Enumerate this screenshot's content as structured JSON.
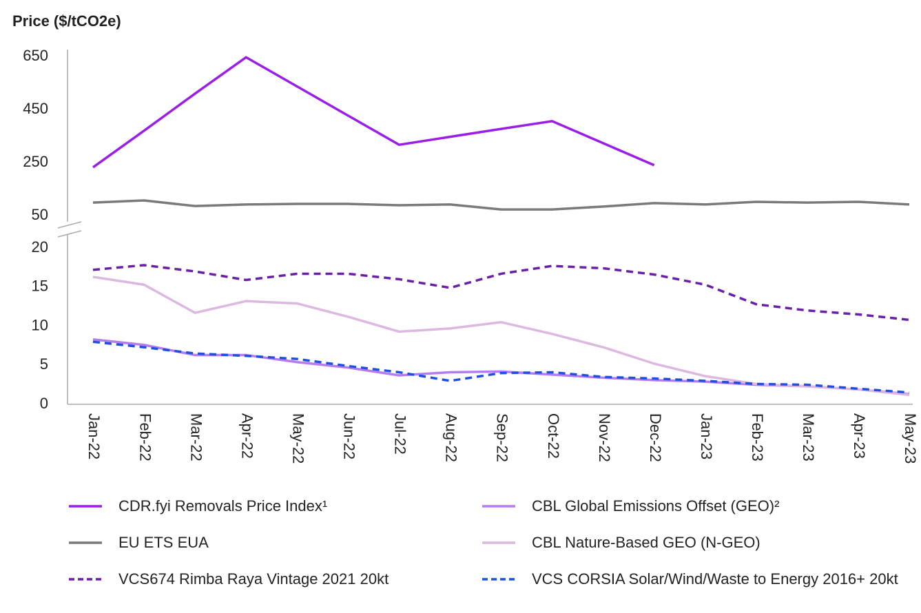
{
  "chart_data": {
    "type": "line",
    "title": "Price ($/tCO2e)",
    "categories": [
      "Jan-22",
      "Feb-22",
      "Mar-22",
      "Apr-22",
      "May-22",
      "Jun-22",
      "Jul-22",
      "Aug-22",
      "Sep-22",
      "Oct-22",
      "Nov-22",
      "Dec-22",
      "Jan-23",
      "Feb-23",
      "Mar-23",
      "Apr-23",
      "May-23"
    ],
    "ylim": [
      0,
      20
    ],
    "yticks": [
      0,
      5,
      10,
      15,
      20
    ],
    "y2lim": [
      50,
      650
    ],
    "y2ticks": [
      50,
      250,
      450,
      650
    ],
    "series": [
      {
        "name": "CDR.fyi Removals Price Index¹",
        "color": "#9b1de8",
        "axis": "y2",
        "dashed": false,
        "values": [
          232,
          370,
          510,
          647,
          537,
          427,
          317,
          347,
          377,
          406,
          323,
          240,
          null,
          null,
          null,
          null,
          null
        ]
      },
      {
        "name": "EU ETS EUA",
        "color": "#7a7a7a",
        "axis": "y2",
        "dashed": false,
        "values": [
          99,
          107,
          86,
          92,
          94,
          94,
          89,
          92,
          73,
          73,
          84,
          97,
          92,
          102,
          99,
          102,
          92
        ]
      },
      {
        "name": "VCS674 Rimba Raya Vintage 2021 20kt",
        "color": "#6a1fa8",
        "axis": "y",
        "dashed": true,
        "values": [
          17.2,
          17.8,
          17.0,
          15.9,
          16.7,
          16.7,
          16.0,
          14.9,
          16.7,
          17.7,
          17.4,
          16.6,
          15.3,
          12.8,
          12.0,
          11.5,
          10.8
        ]
      },
      {
        "name": "CBL Global Emissions Offset (GEO)²",
        "color": "#b57cf0",
        "axis": "y",
        "dashed": false,
        "values": [
          8.3,
          7.6,
          6.3,
          6.3,
          5.4,
          4.7,
          3.7,
          4.1,
          4.2,
          3.8,
          3.4,
          3.1,
          2.9,
          2.5,
          2.3,
          1.9,
          1.3
        ]
      },
      {
        "name": "CBL Nature-Based GEO (N-GEO)",
        "color": "#dcb8e0",
        "axis": "y",
        "dashed": false,
        "values": [
          16.3,
          15.3,
          11.7,
          13.2,
          12.9,
          11.2,
          9.3,
          9.7,
          10.5,
          9.0,
          7.3,
          5.2,
          3.6,
          2.6,
          2.3,
          1.9,
          1.2
        ]
      },
      {
        "name": "VCS CORSIA Solar/Wind/Waste to Energy 2016+ 20kt",
        "color": "#1f4fe0",
        "axis": "y",
        "dashed": true,
        "values": [
          8.0,
          7.3,
          6.5,
          6.2,
          5.8,
          4.9,
          4.1,
          3.0,
          4.0,
          4.1,
          3.5,
          3.3,
          3.0,
          2.6,
          2.5,
          2.0,
          1.5
        ]
      }
    ]
  }
}
